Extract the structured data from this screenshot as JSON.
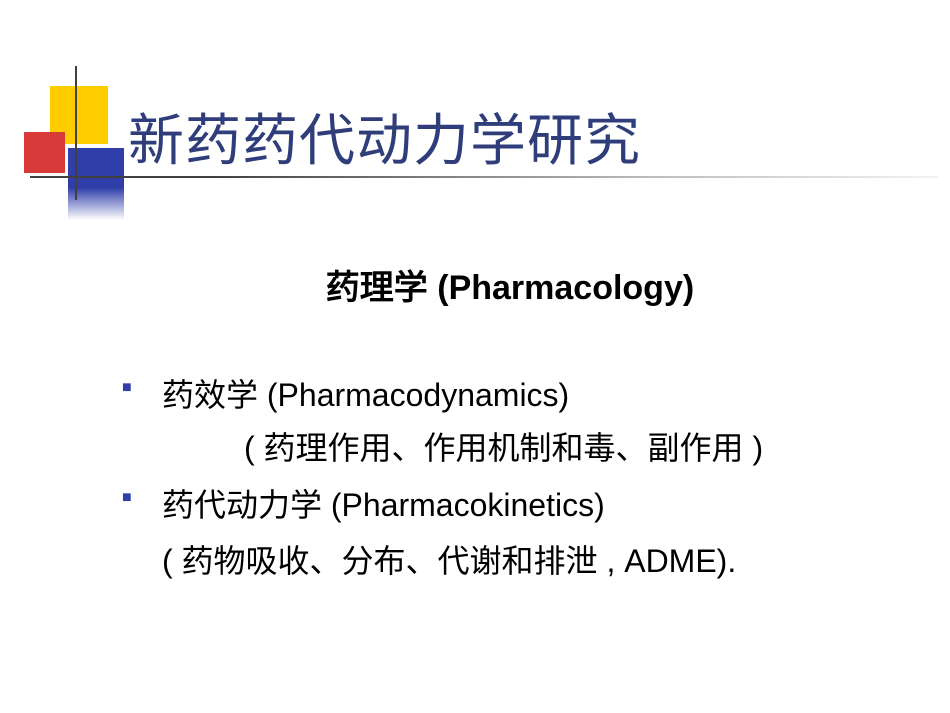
{
  "colors": {
    "title": "#2f3e7a",
    "bullet": "#2f3ea8",
    "sq_yellow": "#ffcc00",
    "sq_red": "#d83a3a",
    "sq_blue": "#2f3ea8",
    "text": "#000000",
    "background": "#ffffff"
  },
  "title": "新药药代动力学研究",
  "subtitle": "药理学 (Pharmacology)",
  "items": [
    {
      "heading": "药效学 (Pharmacodynamics)",
      "detail": "( 药理作用、作用机制和毒、副作用 )",
      "detail_indented": true
    },
    {
      "heading": "药代动力学 (Pharmacokinetics)",
      "detail": "( 药物吸收、分布、代谢和排泄 , ADME).",
      "detail_indented": false
    }
  ]
}
